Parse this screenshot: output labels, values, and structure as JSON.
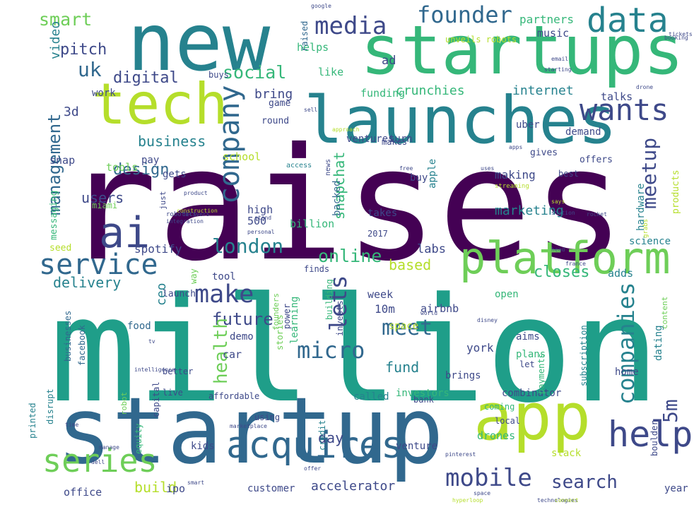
{
  "palette": [
    "#440154",
    "#482878",
    "#3e4989",
    "#31688e",
    "#26828e",
    "#1f9e89",
    "#35b779",
    "#6ece58",
    "#b5de2b",
    "#fde725"
  ],
  "words": [
    {
      "text": "raises",
      "color": "#440154"
    },
    {
      "text": "million",
      "color": "#1f9e89"
    },
    {
      "text": "startup",
      "color": "#31688e"
    },
    {
      "text": "new",
      "color": "#26828e"
    },
    {
      "text": "startups",
      "color": "#35b779"
    },
    {
      "text": "launches",
      "color": "#26828e"
    },
    {
      "text": "tech",
      "color": "#b5de2b"
    },
    {
      "text": "app",
      "color": "#b5de2b"
    },
    {
      "text": "platform",
      "color": "#6ece58"
    },
    {
      "text": "acquires",
      "color": "#31688e"
    },
    {
      "text": "wants",
      "color": "#3e4989"
    },
    {
      "text": "help",
      "color": "#3e4989"
    },
    {
      "text": "series",
      "color": "#6ece58"
    },
    {
      "text": "data",
      "color": "#26828e"
    },
    {
      "text": "service",
      "color": "#31688e"
    },
    {
      "text": "mobile",
      "color": "#3e4989"
    },
    {
      "text": "ai",
      "color": "#3e4989"
    },
    {
      "text": "media",
      "color": "#3e4989"
    },
    {
      "text": "founder",
      "color": "#31688e"
    },
    {
      "text": "company",
      "color": "#31688e"
    },
    {
      "text": "london",
      "color": "#26828e"
    },
    {
      "text": "search",
      "color": "#3e4989"
    },
    {
      "text": "meetup",
      "color": "#3e4989"
    },
    {
      "text": "social",
      "color": "#35b779"
    },
    {
      "text": "online",
      "color": "#35b779"
    },
    {
      "text": "lets",
      "color": "#3e4989"
    },
    {
      "text": "make",
      "color": "#3e4989"
    },
    {
      "text": "smart",
      "color": "#6ece58"
    },
    {
      "text": "micro",
      "color": "#31688e"
    },
    {
      "text": "meet",
      "color": "#31688e"
    },
    {
      "text": "uk",
      "color": "#31688e"
    },
    {
      "text": "companies",
      "color": "#26828e"
    },
    {
      "text": "5m",
      "color": "#3e4989"
    },
    {
      "text": "management",
      "color": "#31688e"
    },
    {
      "text": "future",
      "color": "#3e4989"
    },
    {
      "text": "pitch",
      "color": "#3e4989"
    },
    {
      "text": "digital",
      "color": "#3e4989"
    },
    {
      "text": "design",
      "color": "#31688e"
    },
    {
      "text": "business",
      "color": "#26828e"
    },
    {
      "text": "delivery",
      "color": "#26828e"
    },
    {
      "text": "users",
      "color": "#3e4989"
    },
    {
      "text": "closes",
      "color": "#35b779"
    },
    {
      "text": "fund",
      "color": "#26828e"
    },
    {
      "text": "bring",
      "color": "#3e4989"
    },
    {
      "text": "crunchies",
      "color": "#35b779"
    },
    {
      "text": "internet",
      "color": "#26828e"
    },
    {
      "text": "marketing",
      "color": "#26828e"
    },
    {
      "text": "build",
      "color": "#b5de2b"
    },
    {
      "text": "health",
      "color": "#6ece58"
    },
    {
      "text": "snapchat",
      "color": "#35b779"
    },
    {
      "text": "accelerator",
      "color": "#3e4989"
    },
    {
      "text": "ceo",
      "color": "#26828e"
    },
    {
      "text": "day",
      "color": "#3e4989"
    },
    {
      "text": "video",
      "color": "#26828e"
    },
    {
      "text": "3d",
      "color": "#3e4989"
    },
    {
      "text": "based",
      "color": "#b5de2b"
    },
    {
      "text": "partners",
      "color": "#35b779"
    },
    {
      "text": "music",
      "color": "#3e4989"
    },
    {
      "text": "funding",
      "color": "#35b779"
    },
    {
      "text": "talks",
      "color": "#3e4989"
    },
    {
      "text": "helps",
      "color": "#35b779"
    },
    {
      "text": "like",
      "color": "#35b779"
    },
    {
      "text": "ad",
      "color": "#3e4989"
    },
    {
      "text": "work",
      "color": "#3e4989"
    },
    {
      "text": "raised",
      "color": "#31688e"
    },
    {
      "text": "unveils robots",
      "color": "#b5de2b"
    },
    {
      "text": "high",
      "color": "#3e4989"
    },
    {
      "text": "500",
      "color": "#3e4989"
    },
    {
      "text": "billion",
      "color": "#35b779"
    },
    {
      "text": "backed",
      "color": "#31688e"
    },
    {
      "text": "buy",
      "color": "#3e4989"
    },
    {
      "text": "apple",
      "color": "#26828e"
    },
    {
      "text": "takes",
      "color": "#3e4989"
    },
    {
      "text": "making",
      "color": "#3e4989"
    },
    {
      "text": "products",
      "color": "#b5de2b"
    },
    {
      "text": "hardware",
      "color": "#26828e"
    },
    {
      "text": "science",
      "color": "#26828e"
    },
    {
      "text": "dating",
      "color": "#26828e"
    },
    {
      "text": "adds",
      "color": "#26828e"
    },
    {
      "text": "york",
      "color": "#3e4989"
    },
    {
      "text": "10m",
      "color": "#3e4989"
    },
    {
      "text": "learning",
      "color": "#35b779"
    },
    {
      "text": "airbnb",
      "color": "#3e4989"
    },
    {
      "text": "week",
      "color": "#3e4989"
    },
    {
      "text": "space",
      "color": "#b5de2b"
    },
    {
      "text": "open",
      "color": "#35b779"
    },
    {
      "text": "labs",
      "color": "#3e4989"
    },
    {
      "text": "spotify",
      "color": "#3e4989"
    },
    {
      "text": "tool",
      "color": "#3e4989"
    },
    {
      "text": "launch",
      "color": "#3e4989"
    },
    {
      "text": "way",
      "color": "#6ece58"
    },
    {
      "text": "food",
      "color": "#31688e"
    },
    {
      "text": "demo",
      "color": "#3e4989"
    },
    {
      "text": "car",
      "color": "#3e4989"
    },
    {
      "text": "aims",
      "color": "#3e4989"
    },
    {
      "text": "plans",
      "color": "#35b779"
    },
    {
      "text": "brings",
      "color": "#3e4989"
    },
    {
      "text": "investors",
      "color": "#35b779"
    },
    {
      "text": "combinator",
      "color": "#3e4989"
    },
    {
      "text": "called",
      "color": "#26828e"
    },
    {
      "text": "bank",
      "color": "#3e4989"
    },
    {
      "text": "home",
      "color": "#3e4989"
    },
    {
      "text": "drones",
      "color": "#35b779"
    },
    {
      "text": "venture",
      "color": "#3e4989"
    },
    {
      "text": "kids",
      "color": "#3e4989"
    },
    {
      "text": "ipo",
      "color": "#3e4989"
    },
    {
      "text": "customer",
      "color": "#3e4989"
    },
    {
      "text": "office",
      "color": "#3e4989"
    },
    {
      "text": "year",
      "color": "#3e4989"
    },
    {
      "text": "slack",
      "color": "#b5de2b"
    },
    {
      "text": "facebook",
      "color": "#31688e"
    },
    {
      "text": "businesses",
      "color": "#31688e"
    },
    {
      "text": "disrupt",
      "color": "#26828e"
    },
    {
      "text": "printed",
      "color": "#26828e"
    },
    {
      "text": "robot",
      "color": "#6ece58"
    },
    {
      "text": "capital",
      "color": "#3e4989"
    },
    {
      "text": "equity",
      "color": "#35b779"
    },
    {
      "text": "better",
      "color": "#3e4989"
    },
    {
      "text": "live",
      "color": "#3e4989"
    },
    {
      "text": "affordable",
      "color": "#3e4989"
    },
    {
      "text": "using",
      "color": "#3e4989"
    },
    {
      "text": "credit",
      "color": "#26828e"
    },
    {
      "text": "coming",
      "color": "#35b779"
    },
    {
      "text": "local",
      "color": "#3e4989"
    },
    {
      "text": "let",
      "color": "#3e4989"
    },
    {
      "text": "content",
      "color": "#6ece58"
    },
    {
      "text": "subscription",
      "color": "#26828e"
    },
    {
      "text": "payments",
      "color": "#35b779"
    },
    {
      "text": "boulder",
      "color": "#3e4989"
    },
    {
      "text": "invests",
      "color": "#3e4989"
    },
    {
      "text": "power",
      "color": "#3e4989"
    },
    {
      "text": "building",
      "color": "#35b779"
    },
    {
      "text": "stories",
      "color": "#6ece58"
    },
    {
      "text": "founders",
      "color": "#6ece58"
    },
    {
      "text": "finds",
      "color": "#3e4989"
    },
    {
      "text": "makes",
      "color": "#3e4989"
    },
    {
      "text": "ventures",
      "color": "#3e4989"
    },
    {
      "text": "turn",
      "color": "#3e4989"
    },
    {
      "text": "school",
      "color": "#b5de2b"
    },
    {
      "text": "uber",
      "color": "#3e4989"
    },
    {
      "text": "gives",
      "color": "#3e4989"
    },
    {
      "text": "demand",
      "color": "#3e4989"
    },
    {
      "text": "offers",
      "color": "#3e4989"
    },
    {
      "text": "best",
      "color": "#3e4989"
    },
    {
      "text": "game",
      "color": "#3e4989"
    },
    {
      "text": "round",
      "color": "#3e4989"
    },
    {
      "text": "snap",
      "color": "#3e4989"
    },
    {
      "text": "tools",
      "color": "#6ece58"
    },
    {
      "text": "pay",
      "color": "#3e4989"
    },
    {
      "text": "gets",
      "color": "#3e4989"
    },
    {
      "text": "messaging",
      "color": "#35b779"
    },
    {
      "text": "miami",
      "color": "#6ece58"
    },
    {
      "text": "just",
      "color": "#3e4989"
    },
    {
      "text": "seed",
      "color": "#b5de2b"
    },
    {
      "text": "2017",
      "color": "#3e4989"
    },
    {
      "text": "buys",
      "color": "#3e4989"
    },
    {
      "text": "access",
      "color": "#26828e"
    },
    {
      "text": "news",
      "color": "#3e4989"
    },
    {
      "text": "robotics",
      "color": "#3e4989"
    },
    {
      "text": "integration",
      "color": "#3e4989"
    },
    {
      "text": "delivers",
      "color": "#3e4989"
    },
    {
      "text": "product",
      "color": "#3e4989"
    },
    {
      "text": "streaming",
      "color": "#b5de2b"
    },
    {
      "text": "free",
      "color": "#3e4989"
    },
    {
      "text": "uses",
      "color": "#3e4989"
    },
    {
      "text": "says",
      "color": "#b5de2b"
    },
    {
      "text": "station",
      "color": "#3e4989"
    },
    {
      "text": "rocket",
      "color": "#3e4989"
    },
    {
      "text": "grabs",
      "color": "#b5de2b"
    },
    {
      "text": "head",
      "color": "#3e4989"
    },
    {
      "text": "france",
      "color": "#3e4989"
    },
    {
      "text": "personal",
      "color": "#3e4989"
    },
    {
      "text": "world",
      "color": "#3e4989"
    },
    {
      "text": "disney",
      "color": "#3e4989"
    },
    {
      "text": "intelligence",
      "color": "#3e4989"
    },
    {
      "text": "manage",
      "color": "#3e4989"
    },
    {
      "text": "marketplace",
      "color": "#3e4989"
    },
    {
      "text": "offer",
      "color": "#3e4989"
    },
    {
      "text": "pinterest",
      "color": "#3e4989"
    },
    {
      "text": "hyperloop",
      "color": "#b5de2b"
    },
    {
      "text": "technologies",
      "color": "#3e4989"
    },
    {
      "text": "tickets",
      "color": "#3e4989"
    },
    {
      "text": "booking",
      "color": "#3e4989"
    },
    {
      "text": "email",
      "color": "#3e4989"
    },
    {
      "text": "starting",
      "color": "#3e4989"
    },
    {
      "text": "drone",
      "color": "#3e4989"
    },
    {
      "text": "google",
      "color": "#3e4989"
    },
    {
      "text": "sell",
      "color": "#3e4989"
    },
    {
      "text": "connect",
      "color": "#b5de2b"
    },
    {
      "text": "space",
      "color": "#3e4989"
    },
    {
      "text": "construction",
      "color": "#b5de2b"
    },
    {
      "text": "smart",
      "color": "#3e4989"
    },
    {
      "text": "apps",
      "color": "#3e4989"
    },
    {
      "text": "approach",
      "color": "#b5de2b"
    },
    {
      "text": "tv",
      "color": "#3e4989"
    },
    {
      "text": "stand",
      "color": "#3e4989"
    },
    {
      "text": "time",
      "color": "#3e4989"
    },
    {
      "text": "dell",
      "color": "#3e4989"
    }
  ]
}
